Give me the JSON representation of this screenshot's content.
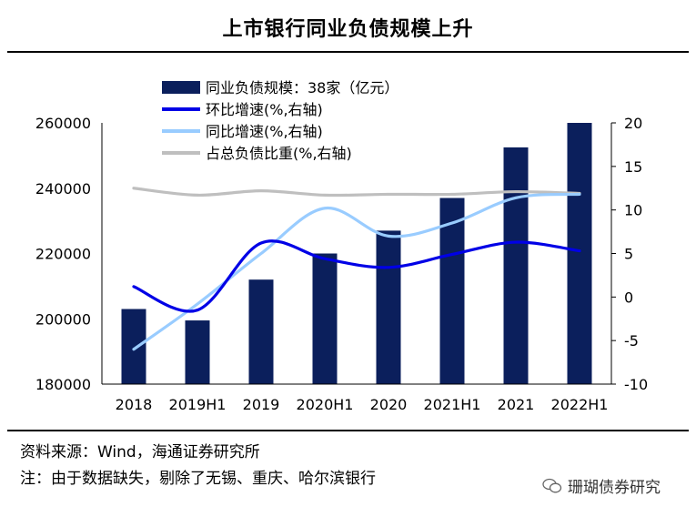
{
  "header": {
    "title": "上市银行同业负债规模上升"
  },
  "chart_data": {
    "type": "bar+line",
    "categories": [
      "2018",
      "2019H1",
      "2019",
      "2020H1",
      "2020",
      "2021H1",
      "2021",
      "2022H1"
    ],
    "left_axis": {
      "min": 180000,
      "max": 260000,
      "ticks": [
        "260000",
        "240000",
        "220000",
        "200000",
        "180000"
      ]
    },
    "right_axis": {
      "min": -10,
      "max": 20,
      "ticks": [
        "20",
        "15",
        "10",
        "5",
        "0",
        "-5",
        "-10"
      ]
    },
    "bar_series": {
      "name": "同业负债规模：38家（亿元）",
      "values": [
        203000,
        199500,
        212000,
        220000,
        227000,
        237000,
        252500,
        260000
      ],
      "color": "#0b1f5c"
    },
    "line_series": [
      {
        "name": "环比增速(%,右轴)",
        "values": [
          1.2,
          -1.5,
          6.2,
          4.4,
          3.4,
          4.9,
          6.3,
          5.3
        ],
        "color": "#0000e6"
      },
      {
        "name": "同比增速(%,右轴)",
        "values": [
          -6.0,
          -0.8,
          5.0,
          10.2,
          7.0,
          8.5,
          11.4,
          11.8
        ],
        "color": "#99ccff"
      },
      {
        "name": "占总负债比重(%,右轴)",
        "values": [
          12.5,
          11.7,
          12.2,
          11.7,
          11.8,
          11.8,
          12.1,
          11.9
        ],
        "color": "#bfbfbf"
      }
    ],
    "legend_position": "top-left"
  },
  "footer": {
    "source": "资料来源：Wind，海通证券研究所",
    "note": "注：由于数据缺失，剔除了无锡、重庆、哈尔滨银行",
    "watermark": "珊瑚债券研究"
  }
}
